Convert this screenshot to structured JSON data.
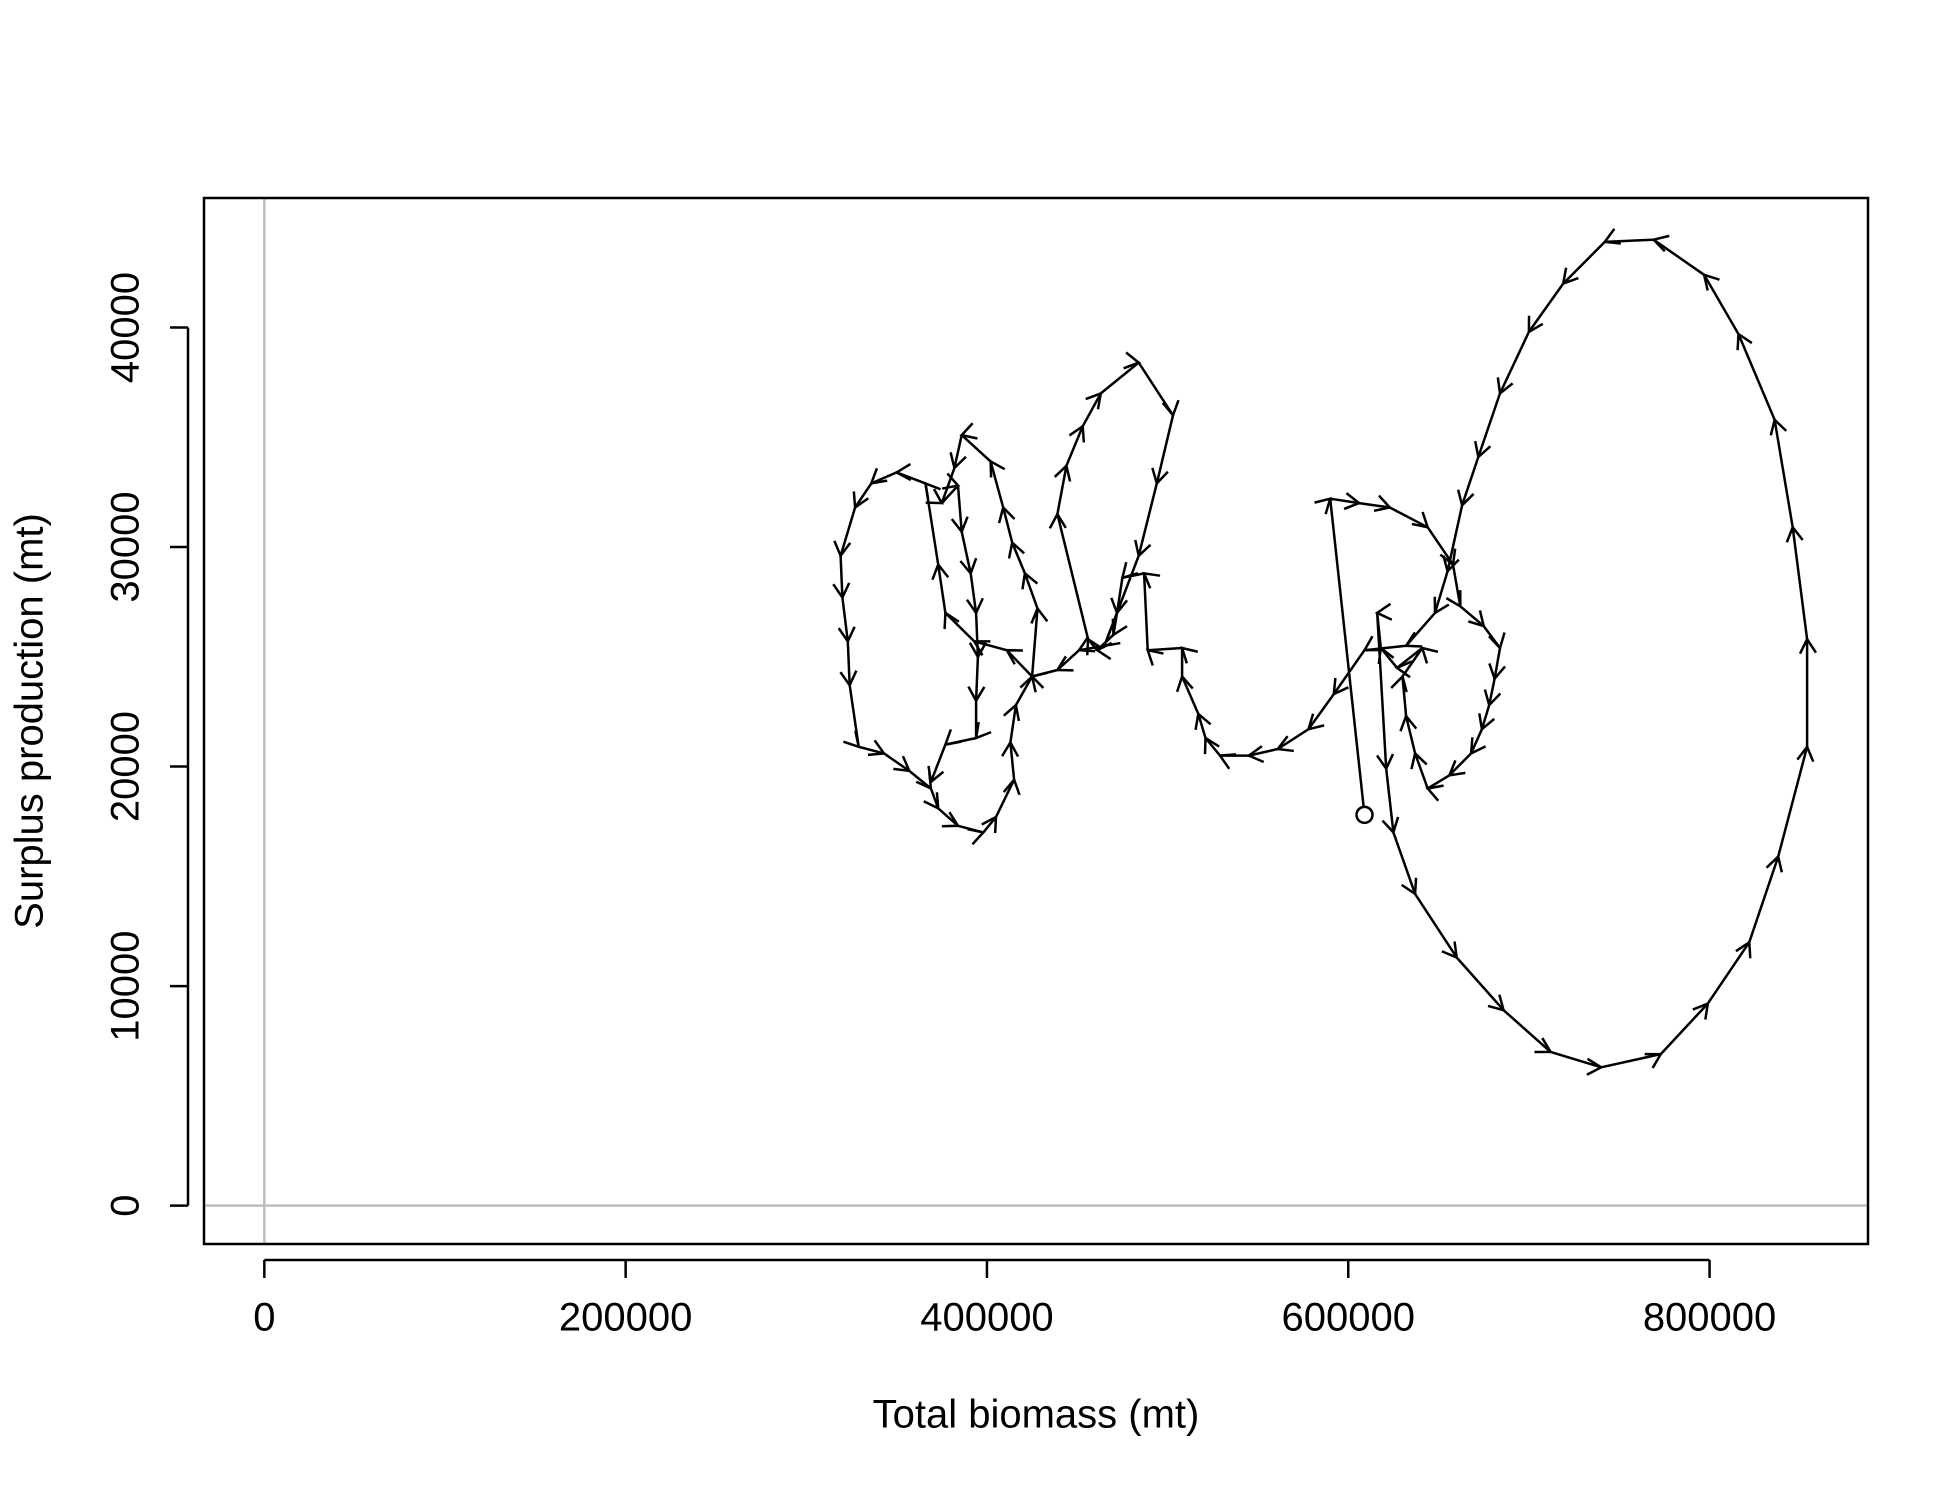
{
  "chart_data": {
    "type": "line",
    "xlabel": "Total biomass (mt)",
    "ylabel": "Surplus production (mt)",
    "x": [
      609000,
      590000,
      606000,
      623000,
      644000,
      658000,
      662000,
      675000,
      684000,
      681000,
      678000,
      674000,
      668000,
      656000,
      644000,
      637000,
      632000,
      630000,
      641000,
      627000,
      618000,
      616000,
      621000,
      625000,
      637000,
      660000,
      686000,
      712000,
      740000,
      773000,
      799000,
      822000,
      838000,
      854000,
      854000,
      846000,
      836000,
      816000,
      797000,
      769000,
      742000,
      719000,
      700000,
      684000,
      672000,
      663000,
      655000,
      648000,
      632000,
      609000,
      592000,
      578000,
      561000,
      545000,
      529000,
      521000,
      517000,
      508000,
      508000,
      489000,
      487000,
      475000,
      472000,
      470000,
      461000,
      456000,
      439000,
      444000,
      453000,
      463000,
      484000,
      503000,
      494000,
      484000,
      465000,
      451000,
      439000,
      425000,
      411000,
      393000,
      377000,
      373000,
      366000,
      350000,
      336000,
      327000,
      319000,
      320000,
      323000,
      324000,
      329000,
      343000,
      357000,
      369000,
      373000,
      384000,
      398000,
      405000,
      415000,
      413000,
      416000,
      425000,
      428000,
      421000,
      414000,
      409000,
      402000,
      386000,
      382000,
      375000,
      384000,
      386000,
      391000,
      394000,
      395000,
      394000,
      394000,
      377000,
      369000
    ],
    "values": [
      17800,
      32200,
      32000,
      31800,
      30900,
      29200,
      27300,
      26400,
      25400,
      24000,
      22800,
      21700,
      20600,
      19600,
      19000,
      20600,
      22300,
      24100,
      25400,
      24500,
      25400,
      27000,
      19900,
      17000,
      14200,
      11300,
      8900,
      7000,
      6300,
      6900,
      9200,
      12000,
      15900,
      20900,
      25800,
      30900,
      35800,
      39700,
      42400,
      44000,
      43900,
      42000,
      39800,
      37000,
      34100,
      31900,
      28900,
      27000,
      25500,
      25300,
      23300,
      21700,
      20800,
      20500,
      20500,
      21300,
      22400,
      24100,
      25400,
      25300,
      28800,
      28600,
      27000,
      26000,
      25300,
      25800,
      31500,
      33700,
      35500,
      37000,
      38400,
      36000,
      32900,
      29600,
      25500,
      25300,
      24400,
      24100,
      25300,
      25700,
      27000,
      29200,
      32900,
      33400,
      32900,
      31800,
      29600,
      27700,
      25700,
      23700,
      20900,
      20600,
      19800,
      19000,
      18100,
      17300,
      17000,
      17700,
      19400,
      21100,
      22800,
      24100,
      27200,
      28800,
      30200,
      31800,
      33900,
      35100,
      33600,
      32000,
      32800,
      30700,
      28800,
      27000,
      25000,
      23000,
      21300,
      21000,
      19300
    ],
    "color": "#000000",
    "xlim": [
      -33400,
      887700
    ],
    "ylim": [
      -1750,
      45900
    ],
    "xticks": [
      0,
      200000,
      400000,
      600000,
      800000
    ],
    "yticks": [
      0,
      10000,
      20000,
      30000,
      40000
    ],
    "hline": 0,
    "vline": 0,
    "reference_color": "#bebebe"
  }
}
